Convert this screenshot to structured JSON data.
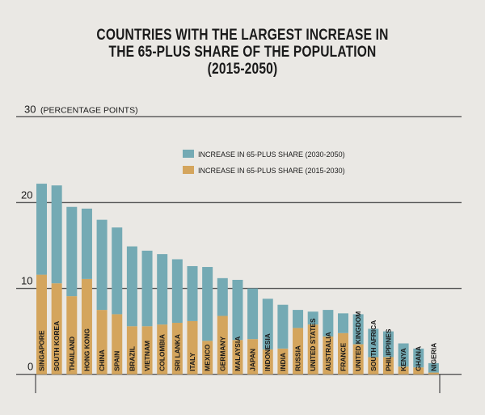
{
  "chart_data": {
    "type": "bar",
    "stacked": true,
    "title": "COUNTRIES WITH THE LARGEST INCREASE IN THE 65-PLUS SHARE OF THE POPULATION (2015-2050)",
    "title_lines": [
      "COUNTRIES WITH THE LARGEST INCREASE IN",
      "THE 65-PLUS SHARE OF THE POPULATION",
      "(2015-2050)"
    ],
    "xlabel": "",
    "ylabel": "(PERCENTAGE POINTS)",
    "ylim": [
      0,
      30
    ],
    "yticks": [
      0,
      10,
      20,
      30
    ],
    "ytick_labels": [
      "0",
      "10",
      "20",
      "30"
    ],
    "grid": true,
    "legend_position": "top-center",
    "categories": [
      "SINGAPORE",
      "SOUTH KOREA",
      "THAILAND",
      "HONG KONG",
      "CHINA",
      "SPAIN",
      "BRAZIL",
      "VIETNAM",
      "COLOMBIA",
      "SRI LANKA",
      "ITALY",
      "MEXICO",
      "GERMANY",
      "MALAYSIA",
      "JAPAN",
      "INDONESIA",
      "INDIA",
      "RUSSIA",
      "UNITED STATES",
      "AUSTRALIA",
      "FRANCE",
      "UNITED KINGDOM",
      "SOUTH AFRICA",
      "PHILIPPINES",
      "KENYA",
      "GHANA",
      "NIGERIA"
    ],
    "series": [
      {
        "name": "INCREASE IN 65-PLUS SHARE (2015-2030)",
        "color": "#d4a55d",
        "values": [
          11.6,
          10.6,
          9.1,
          11.1,
          7.5,
          7.0,
          5.6,
          5.6,
          5.8,
          6.0,
          6.2,
          3.9,
          6.8,
          4.0,
          4.1,
          2.9,
          3.0,
          5.4,
          5.8,
          4.4,
          4.8,
          3.5,
          2.0,
          2.0,
          0.9,
          0.8,
          0.2
        ]
      },
      {
        "name": "INCREASE IN 65-PLUS SHARE (2030-2050)",
        "color": "#74aab4",
        "values": [
          10.6,
          11.4,
          10.4,
          8.2,
          10.5,
          10.1,
          9.3,
          8.8,
          8.2,
          7.4,
          6.4,
          8.6,
          4.4,
          7.0,
          5.9,
          5.9,
          5.1,
          2.1,
          1.5,
          3.1,
          2.3,
          3.5,
          3.3,
          3.0,
          2.7,
          2.2,
          1.1
        ]
      }
    ],
    "totals": [
      22.2,
      22.0,
      19.5,
      19.3,
      18.0,
      17.1,
      14.9,
      14.4,
      14.0,
      13.4,
      12.6,
      12.5,
      11.2,
      11.0,
      10.0,
      8.8,
      8.1,
      7.5,
      7.3,
      7.5,
      7.1,
      7.0,
      5.3,
      5.0,
      3.6,
      3.0,
      1.3
    ],
    "legend": [
      {
        "label": "INCREASE IN 65-PLUS SHARE (2030-2050)",
        "color": "#74aab4"
      },
      {
        "label": "INCREASE IN 65-PLUS SHARE (2015-2030)",
        "color": "#d4a55d"
      }
    ]
  }
}
